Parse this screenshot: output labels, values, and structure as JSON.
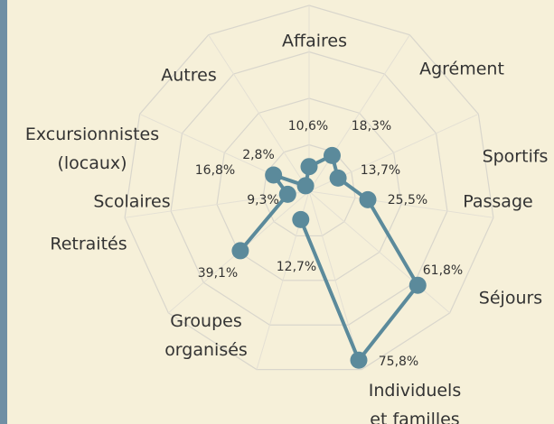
{
  "chart_data": {
    "type": "radar",
    "categories": [
      "Affaires",
      "Agrément",
      "Sportifs",
      "Passage",
      "Séjours",
      "Individuels\net familles",
      "Groupes\norganisés",
      "Retraités",
      "Scolaires",
      "Excursionnistes\n(locaux)",
      "Autres"
    ],
    "values": [
      10.6,
      18.3,
      13.7,
      25.5,
      61.8,
      75.8,
      12.7,
      39.1,
      9.3,
      16.8,
      2.8
    ],
    "value_labels": [
      "10,6%",
      "18,3%",
      "13,7%",
      "25,5%",
      "61,8%",
      "75,8%",
      "12,7%",
      "39,1%",
      "9,3%",
      "16,8%",
      "2,8%"
    ],
    "color": "#5b8a9b",
    "ylim": [
      0,
      80
    ],
    "yticks": [
      20,
      40,
      60,
      80
    ],
    "grid": true
  }
}
